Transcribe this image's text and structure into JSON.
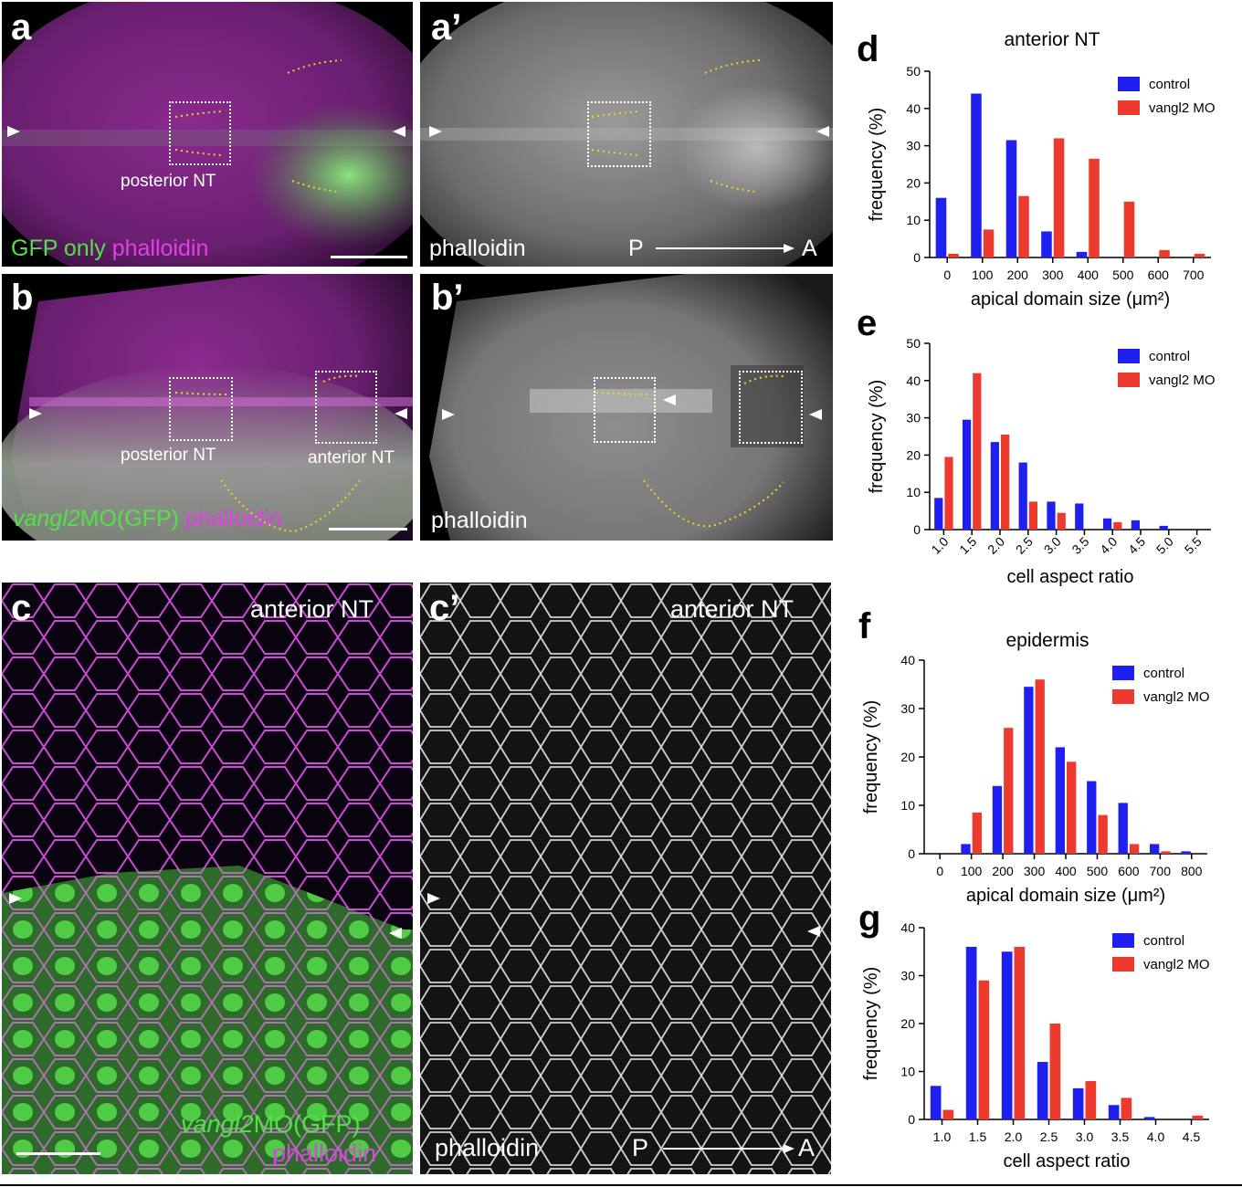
{
  "panels": {
    "a": {
      "label": "a",
      "caption_green": "GFP only",
      "caption_mag": "phalloidin",
      "region": "posterior NT"
    },
    "a_prime": {
      "label": "a’",
      "caption": "phalloidin",
      "axis_p": "P",
      "axis_a": "A"
    },
    "b": {
      "label": "b",
      "caption_green_italic": "vangl2",
      "caption_green": "MO(GFP)",
      "caption_mag": "phalloidin",
      "region1": "posterior NT",
      "region2": "anterior NT"
    },
    "b_prime": {
      "label": "b’",
      "caption": "phalloidin"
    },
    "c": {
      "label": "c",
      "title": "anterior NT",
      "caption_green_italic": "vangl2",
      "caption_green": "MO(GFP)",
      "caption_mag": "phalloidin"
    },
    "c_prime": {
      "label": "c’",
      "title": "anterior NT",
      "caption": "phalloidin",
      "axis_p": "P",
      "axis_a": "A"
    }
  },
  "colors": {
    "control": "#1f1ff0",
    "vangl2": "#ec3b2e",
    "magenta": "#e040e8",
    "green": "#55e04a"
  },
  "chart_data": [
    {
      "id": "d",
      "label": "d",
      "type": "bar",
      "title": "anterior NT",
      "xlabel": "apical domain size (μm²)",
      "ylabel": "frequency (%)",
      "ylim": [
        0,
        50
      ],
      "yticks": [
        0,
        10,
        20,
        30,
        40,
        50
      ],
      "categories": [
        "0",
        "100",
        "200",
        "300",
        "400",
        "500",
        "600",
        "700"
      ],
      "series": [
        {
          "name": "control",
          "values": [
            16,
            44,
            31.5,
            7,
            1.5,
            0,
            0,
            0
          ]
        },
        {
          "name": "vangl2 MO",
          "values": [
            1,
            7.5,
            16.5,
            32,
            26.5,
            15,
            2,
            1
          ]
        }
      ],
      "legend": "top-right",
      "tick_rotation": 0
    },
    {
      "id": "e",
      "label": "e",
      "type": "bar",
      "title": "",
      "xlabel": "cell aspect ratio",
      "ylabel": "frequency (%)",
      "ylim": [
        0,
        50
      ],
      "yticks": [
        0,
        10,
        20,
        30,
        40,
        50
      ],
      "categories": [
        "1.0",
        "1.5",
        "2.0",
        "2.5",
        "3.0",
        "3.5",
        "4.0",
        "4.5",
        "5.0",
        "5.5"
      ],
      "series": [
        {
          "name": "control",
          "values": [
            8.5,
            29.5,
            23.5,
            18,
            7.5,
            7,
            3,
            2.5,
            1,
            0
          ]
        },
        {
          "name": "vangl2 MO",
          "values": [
            19.5,
            42,
            25.5,
            7.5,
            4.5,
            0,
            2,
            0,
            0,
            0
          ]
        }
      ],
      "legend": "top-right",
      "tick_rotation": -45
    },
    {
      "id": "f",
      "label": "f",
      "type": "bar",
      "title": "epidermis",
      "xlabel": "apical domain size (μm²)",
      "ylabel": "frequency (%)",
      "ylim": [
        0,
        40
      ],
      "yticks": [
        0,
        10,
        20,
        30,
        40
      ],
      "categories": [
        "0",
        "100",
        "200",
        "300",
        "400",
        "500",
        "600",
        "700",
        "800"
      ],
      "series": [
        {
          "name": "control",
          "values": [
            0,
            2,
            14,
            34.5,
            22,
            15,
            10.5,
            2,
            0.5
          ]
        },
        {
          "name": "vangl2 MO",
          "values": [
            0,
            8.5,
            26,
            36,
            19,
            8,
            2,
            0.5,
            0
          ]
        }
      ],
      "legend": "top-right",
      "tick_rotation": 0
    },
    {
      "id": "g",
      "label": "g",
      "type": "bar",
      "title": "",
      "xlabel": "cell aspect ratio",
      "ylabel": "frequency (%)",
      "ylim": [
        0,
        40
      ],
      "yticks": [
        0,
        10,
        20,
        30,
        40
      ],
      "categories": [
        "1.0",
        "1.5",
        "2.0",
        "2.5",
        "3.0",
        "3.5",
        "4.0",
        "4.5"
      ],
      "series": [
        {
          "name": "control",
          "values": [
            7,
            36,
            35,
            12,
            6.5,
            3,
            0.5,
            0
          ]
        },
        {
          "name": "vangl2 MO",
          "values": [
            2,
            29,
            36,
            20,
            8,
            4.5,
            0,
            0.8
          ]
        }
      ],
      "legend": "top-right",
      "tick_rotation": 0
    }
  ]
}
